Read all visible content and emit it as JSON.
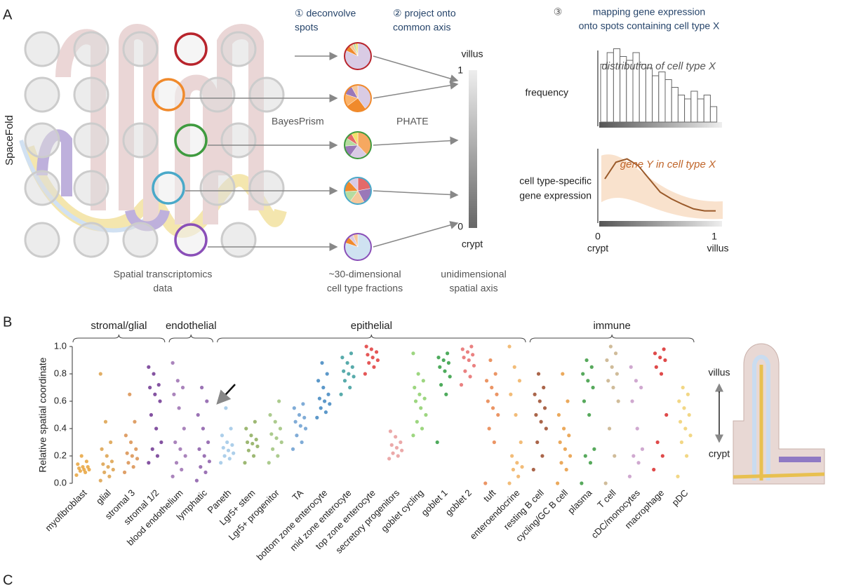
{
  "panel_a": {
    "label": "A",
    "side_label": "SpaceFold",
    "steps": [
      [
        "① deconvolve",
        "spots"
      ],
      [
        "② project onto",
        "common axis"
      ],
      [
        "③",
        "mapping gene expression",
        "onto spots containing cell type X"
      ]
    ],
    "methods": [
      "BayesPrism",
      "PHATE"
    ],
    "captions": [
      [
        "Spatial transcriptomics",
        "data"
      ],
      [
        "~30-dimensional",
        "cell type fractions"
      ],
      [
        "unidimensional",
        "spatial axis"
      ]
    ],
    "axis": {
      "top": "villus",
      "top_value": 1,
      "bottom_value": 0,
      "bottom": "crypt"
    },
    "pies": [
      {
        "ring": "#b8242c",
        "values": [
          82,
          7,
          5,
          3,
          3
        ],
        "colors": [
          "#d9cbe4",
          "#f08a2c",
          "#f6c79a",
          "#b6dca0",
          "#f3e06c"
        ]
      },
      {
        "ring": "#f08a2c",
        "values": [
          40,
          25,
          15,
          12,
          8
        ],
        "colors": [
          "#d9cbe4",
          "#f08a2c",
          "#fbb36a",
          "#9a78b8",
          "#f6c79a"
        ]
      },
      {
        "ring": "#3f9b3f",
        "values": [
          38,
          22,
          14,
          10,
          8,
          8
        ],
        "colors": [
          "#f6a860",
          "#d9cbe4",
          "#9a78b8",
          "#b6dca0",
          "#e46a6a",
          "#f3e06c"
        ]
      },
      {
        "ring": "#4aa9c9",
        "values": [
          22,
          20,
          18,
          14,
          14,
          12
        ],
        "colors": [
          "#e46a6a",
          "#9a78b8",
          "#f6c79a",
          "#b6dca0",
          "#f08a2c",
          "#d9cbe4"
        ]
      },
      {
        "ring": "#8a4fb8",
        "values": [
          80,
          8,
          6,
          6
        ],
        "colors": [
          "#cfe2f1",
          "#f08a2c",
          "#d9cbe4",
          "#f6c79a"
        ]
      }
    ],
    "histogram": {
      "ylabel": "frequency",
      "title": "distribution of cell type X",
      "values": [
        0.75,
        0.9,
        0.95,
        0.85,
        0.8,
        0.9,
        0.75,
        0.7,
        0.6,
        0.65,
        0.55,
        0.45,
        0.35,
        0.3,
        0.4,
        0.3,
        0.35,
        0.2
      ]
    },
    "expression": {
      "ylabel": [
        "cell type-specific",
        "gene expression"
      ],
      "title": "gene Y in cell type X",
      "values": [
        0.6,
        0.85,
        0.9,
        0.8,
        0.6,
        0.4,
        0.3,
        0.22,
        0.15,
        0.12,
        0.12
      ],
      "xticks": [
        0,
        1
      ],
      "xlabels": [
        "crypt",
        "villus"
      ]
    }
  },
  "chart_data": {
    "type": "beeswarm",
    "panel_label": "B",
    "ylabel": "Relative spatial coordinate",
    "ylim": [
      0,
      1
    ],
    "yticks": [
      {
        "value": 0,
        "label": "0.0"
      },
      {
        "value": 0.2,
        "label": "0.2"
      },
      {
        "value": 0.4,
        "label": "0.4"
      },
      {
        "value": 0.6,
        "label": "0.6"
      },
      {
        "value": 0.8,
        "label": "0.8"
      },
      {
        "value": 1,
        "label": "1.0"
      }
    ],
    "categories": [
      "myofibroblast",
      "glial",
      "stromal 3",
      "stromal 1/2",
      "blood endothelium",
      "lymphatic",
      "Paneth",
      "Lgr5+ stem",
      "Lgr5+ progenitor",
      "TA",
      "bottom zone enterocyte",
      "mid zone enterocyte",
      "top zone enterocyte",
      "secretory progenitors",
      "goblet cycling",
      "goblet 1",
      "goblet 2",
      "tuft",
      "enteroendocrine",
      "resting B cell",
      "cycling/GC B cell",
      "plasma",
      "T cell",
      "cDC/monocytes",
      "macrophage",
      "pDC"
    ],
    "colors": [
      "#e8a33c",
      "#dca04a",
      "#d98f4e",
      "#6e3590",
      "#9b6fb0",
      "#8a5aa8",
      "#9fc7e6",
      "#8cac5a",
      "#9dc27a",
      "#6a9ed0",
      "#3f86c0",
      "#3b9c9c",
      "#e03a3a",
      "#e89a9a",
      "#8ccf6a",
      "#2f9c3f",
      "#e66b6b",
      "#e8834a",
      "#f0b060",
      "#9b4a2a",
      "#e89a40",
      "#3a9a40",
      "#c8b088",
      "#c89ac8",
      "#d92a2a",
      "#f0d070"
    ],
    "values": [
      [
        0.06,
        0.08,
        0.09,
        0.1,
        0.1,
        0.11,
        0.12,
        0.12,
        0.14,
        0.16,
        0.2
      ],
      [
        0.02,
        0.05,
        0.08,
        0.1,
        0.12,
        0.14,
        0.16,
        0.2,
        0.25,
        0.3,
        0.45,
        0.8
      ],
      [
        0.08,
        0.12,
        0.15,
        0.18,
        0.2,
        0.22,
        0.25,
        0.3,
        0.35,
        0.45,
        0.65
      ],
      [
        0.15,
        0.2,
        0.25,
        0.3,
        0.4,
        0.5,
        0.6,
        0.65,
        0.7,
        0.72,
        0.8,
        0.85
      ],
      [
        0.05,
        0.1,
        0.15,
        0.2,
        0.25,
        0.3,
        0.4,
        0.55,
        0.65,
        0.7,
        0.75,
        0.88
      ],
      [
        0.02,
        0.08,
        0.12,
        0.16,
        0.2,
        0.25,
        0.3,
        0.4,
        0.5,
        0.6,
        0.7
      ],
      [
        0.15,
        0.18,
        0.2,
        0.22,
        0.24,
        0.26,
        0.28,
        0.3,
        0.35,
        0.4,
        0.55
      ],
      [
        0.15,
        0.2,
        0.24,
        0.27,
        0.29,
        0.3,
        0.32,
        0.35,
        0.4,
        0.45
      ],
      [
        0.15,
        0.2,
        0.25,
        0.3,
        0.33,
        0.36,
        0.4,
        0.45,
        0.5,
        0.6
      ],
      [
        0.25,
        0.3,
        0.35,
        0.4,
        0.42,
        0.45,
        0.48,
        0.5,
        0.55,
        0.58
      ],
      [
        0.48,
        0.52,
        0.55,
        0.58,
        0.6,
        0.62,
        0.65,
        0.7,
        0.75,
        0.8,
        0.88
      ],
      [
        0.65,
        0.7,
        0.75,
        0.78,
        0.8,
        0.82,
        0.85,
        0.88,
        0.92,
        0.95
      ],
      [
        0.8,
        0.85,
        0.88,
        0.9,
        0.92,
        0.94,
        0.96,
        0.98,
        1.0
      ],
      [
        0.18,
        0.2,
        0.22,
        0.24,
        0.26,
        0.28,
        0.3,
        0.34,
        0.38
      ],
      [
        0.35,
        0.4,
        0.45,
        0.5,
        0.55,
        0.6,
        0.62,
        0.65,
        0.7,
        0.75,
        0.8,
        0.95
      ],
      [
        0.3,
        0.65,
        0.72,
        0.78,
        0.82,
        0.85,
        0.88,
        0.9,
        0.92,
        0.95
      ],
      [
        0.72,
        0.78,
        0.82,
        0.86,
        0.9,
        0.92,
        0.94,
        0.96,
        0.98,
        1.0
      ],
      [
        0.0,
        0.3,
        0.4,
        0.5,
        0.55,
        0.6,
        0.65,
        0.7,
        0.75,
        0.8,
        0.9
      ],
      [
        0.0,
        0.05,
        0.1,
        0.12,
        0.15,
        0.2,
        0.3,
        0.5,
        0.65,
        0.75,
        0.85,
        1.0
      ],
      [
        0.1,
        0.2,
        0.3,
        0.4,
        0.45,
        0.5,
        0.55,
        0.6,
        0.65,
        0.7,
        0.8
      ],
      [
        0.0,
        0.1,
        0.15,
        0.2,
        0.25,
        0.3,
        0.35,
        0.4,
        0.5,
        0.6,
        0.8
      ],
      [
        0.0,
        0.15,
        0.2,
        0.25,
        0.5,
        0.6,
        0.7,
        0.75,
        0.8,
        0.85,
        0.9
      ],
      [
        0.0,
        0.2,
        0.4,
        0.6,
        0.7,
        0.75,
        0.8,
        0.85,
        0.9,
        0.95,
        1.0
      ],
      [
        0.05,
        0.15,
        0.2,
        0.25,
        0.4,
        0.6,
        0.7,
        0.75,
        0.85
      ],
      [
        0.1,
        0.2,
        0.3,
        0.5,
        0.8,
        0.85,
        0.9,
        0.92,
        0.95,
        0.98
      ],
      [
        0.05,
        0.2,
        0.3,
        0.35,
        0.4,
        0.45,
        0.5,
        0.55,
        0.6,
        0.65,
        0.7
      ]
    ],
    "groups": [
      {
        "name": "stromal/glial",
        "from": 0,
        "to": 3
      },
      {
        "name": "endothelial",
        "from": 4,
        "to": 5
      },
      {
        "name": "epithelial",
        "from": 6,
        "to": 18
      },
      {
        "name": "immune",
        "from": 19,
        "to": 25
      }
    ],
    "inset": {
      "top": "villus",
      "bottom": "crypt"
    }
  },
  "panel_c_label": "C"
}
